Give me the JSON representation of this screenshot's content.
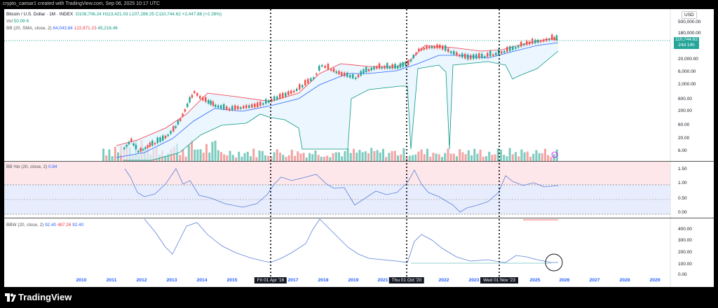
{
  "header": {
    "credit": "crypto_caesar1 created with TradingView.com, Sep 06, 2025 10:17 UTC"
  },
  "main_pane": {
    "symbol": "Bitcoin / U.S. Dollar · 1M · INDEX",
    "ohlc": {
      "open": "O108,706.24",
      "high": "H113,421.03",
      "low": "L107,286.25",
      "close": "C110,744.62",
      "change": "+2,447.88 (+2.26%)"
    },
    "volume_label": "Vol",
    "volume_value": "50.09 K",
    "bb_label": "BB (20, SMA, close, 2)",
    "bb_basis": "84,043.84",
    "bb_upper": "122,871.23",
    "bb_lower": "45,216.46",
    "currency": "USD",
    "price_tag_value": "110,744.62",
    "price_tag_countdown": "24d 14h",
    "y_ticks": [
      "500,000.00",
      "180,000.00",
      "20,000.00",
      "6,000.00",
      "2,000.00",
      "600.00",
      "200.00",
      "60.00",
      "20.00",
      "6.00"
    ]
  },
  "bbpctb_pane": {
    "label": "BB %b (20, close, 2)",
    "value": "0.84",
    "y_ticks": [
      "1.50",
      "1.00",
      "0.50",
      "0.00"
    ]
  },
  "bbw_pane": {
    "label": "BBW (20, close, 2)",
    "value1": "92.40",
    "value2": "487.26",
    "value3": "92.40",
    "y_ticks": [
      "400.00",
      "300.00",
      "200.00",
      "100.00",
      "0.00"
    ]
  },
  "x_axis": {
    "years": [
      "2010",
      "2011",
      "2012",
      "2013",
      "2014",
      "2015",
      "2017",
      "2018",
      "2019",
      "2021",
      "2022",
      "2023",
      "2025",
      "2026",
      "2027",
      "2028",
      "2029"
    ],
    "markers": [
      "Fri 01 Apr '16",
      "Thu 01 Oct '20",
      "Wed 01 Nov '23"
    ]
  },
  "footer": {
    "brand": "TradingView"
  },
  "colors": {
    "up": "#26a69a",
    "down": "#ef5350",
    "bb_basis": "#2962ff",
    "bb_upper": "#f23645",
    "bb_lower": "#089981"
  }
}
